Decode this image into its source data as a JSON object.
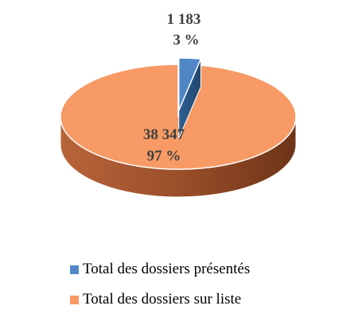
{
  "chart_data": {
    "type": "pie",
    "title": "",
    "slices": [
      {
        "name": "Total des dossiers présentés",
        "value": 1183,
        "value_label": "1 183",
        "percent_label": "3 %",
        "color": "#4f86c6",
        "exploded": true
      },
      {
        "name": "Total des dossiers sur liste",
        "value": 38347,
        "value_label": "38 347",
        "percent_label": "97 %",
        "color": "#f79a65"
      }
    ],
    "legend_position": "bottom",
    "style": "3d"
  }
}
